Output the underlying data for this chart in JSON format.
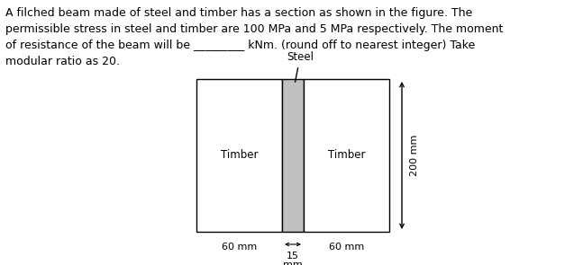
{
  "text_lines": [
    "A filched beam made of steel and timber has a section as shown in the figure. The",
    "permissible stress in steel and timber are 100 MPa and 5 MPa respectively. The moment",
    "of resistance of the beam will be _________ kNm. (round off to nearest integer) Take",
    "modular ratio as 20."
  ],
  "fig_width": 6.47,
  "fig_height": 2.95,
  "dpi": 100,
  "timber_color": "#ffffff",
  "steel_color": "#c0c0c0",
  "outline_color": "#000000",
  "timber_label": "Timber",
  "steel_label": "Steel",
  "dim_200": "200 mm",
  "dim_60_left": "60 mm",
  "dim_15": "15",
  "dim_mm": "mm",
  "dim_60_right": "60 mm",
  "text_fontsize": 9.0,
  "label_fontsize": 8.5,
  "dim_fontsize": 8.0
}
